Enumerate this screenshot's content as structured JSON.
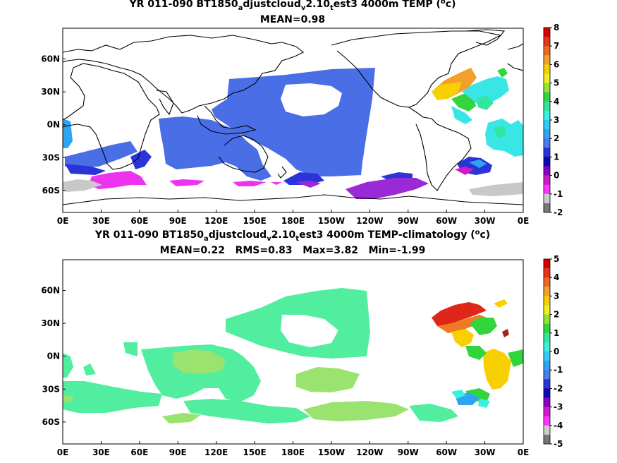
{
  "panels": [
    {
      "id": "top",
      "title": {
        "pre": "YR 011-090 BT1850",
        "sub1": "a",
        "mid1": "djustcloud",
        "sub2": "v",
        "mid2": "2.10",
        "sub3": "t",
        "post": "est3 4000m TEMP (",
        "sup": "o",
        "end": "c)"
      },
      "stats": "MEAN=0.98",
      "colorbar": {
        "ticks": [
          "8",
          "7",
          "6",
          "5",
          "4",
          "3",
          "2",
          "1",
          "0",
          "-1",
          "-2"
        ],
        "colors": [
          "#d90000",
          "#e8341c",
          "#ef6a1f",
          "#f39f2c",
          "#f6d000",
          "#f0ee20",
          "#93e437",
          "#33d53c",
          "#33e6a0",
          "#3af1e1",
          "#2ecdf2",
          "#2fa4f2",
          "#4a7cec",
          "#2a34d9",
          "#0e08b3",
          "#8b00c7",
          "#d21acd",
          "#ff33ff",
          "#cccccc",
          "#777777"
        ]
      },
      "chart_data": {
        "type": "heatmap",
        "title": "YR 011-090 BT1850_adjustcloud_v2.10_test3 4000m TEMP (oc)",
        "subtitle": "MEAN=0.98",
        "x_ticks": [
          "0E",
          "30E",
          "60E",
          "90E",
          "120E",
          "150E",
          "180E",
          "150W",
          "120W",
          "90W",
          "60W",
          "30W",
          "0E"
        ],
        "y_ticks": [
          "60N",
          "30N",
          "0N",
          "30S",
          "60S"
        ],
        "colorbar_range": [
          -2,
          8
        ],
        "mean": 0.98
      }
    },
    {
      "id": "bottom",
      "title": {
        "pre": "YR 011-090 BT1850",
        "sub1": "a",
        "mid1": "djustcloud",
        "sub2": "v",
        "mid2": "2.10",
        "sub3": "t",
        "post": "est3 4000m TEMP-climatology (",
        "sup": "o",
        "end": "c)"
      },
      "stats": "MEAN=0.22   RMS=0.83   Max=3.82   Min=-1.99",
      "colorbar": {
        "ticks": [
          "5",
          "4",
          "3",
          "2",
          "1",
          "0",
          "-1",
          "-2",
          "-3",
          "-4",
          "-5"
        ],
        "colors": [
          "#d90000",
          "#e8341c",
          "#ef6a1f",
          "#f39f2c",
          "#f6d000",
          "#f0ee20",
          "#93e437",
          "#33d53c",
          "#33e6a0",
          "#3af1e1",
          "#2ecdf2",
          "#2fa4f2",
          "#4a7cec",
          "#2a34d9",
          "#0e08b3",
          "#8b00c7",
          "#d21acd",
          "#ff33ff",
          "#cccccc",
          "#777777"
        ]
      },
      "chart_data": {
        "type": "heatmap",
        "title": "YR 011-090 BT1850_adjustcloud_v2.10_test3 4000m TEMP-climatology (oc)",
        "subtitle": "MEAN=0.22   RMS=0.83   Max=3.82   Min=-1.99",
        "x_ticks": [
          "0E",
          "30E",
          "60E",
          "90E",
          "120E",
          "150E",
          "180E",
          "150W",
          "120W",
          "90W",
          "60W",
          "30W",
          "0E"
        ],
        "y_ticks": [
          "60N",
          "30N",
          "0N",
          "30S",
          "60S"
        ],
        "colorbar_range": [
          -5,
          5
        ],
        "mean": 0.22,
        "rms": 0.83,
        "max": 3.82,
        "min": -1.99
      }
    }
  ]
}
